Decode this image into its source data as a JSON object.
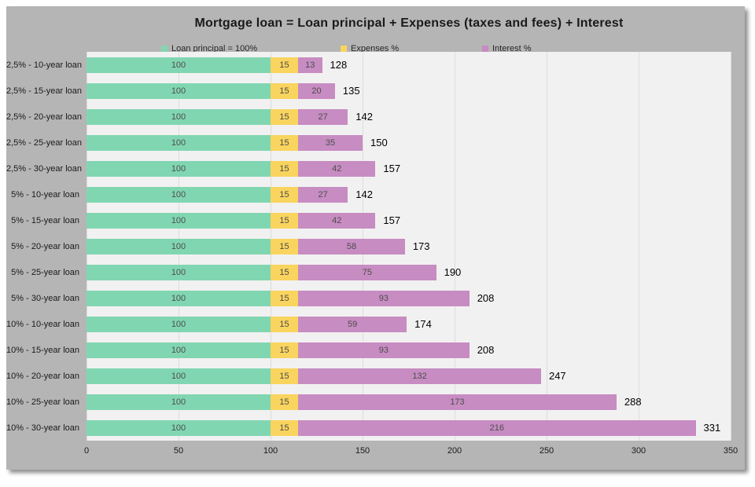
{
  "panel": {
    "background": "#b5b5b5",
    "plot_background": "#f2f1f1",
    "gridline_color": "#dddcdc"
  },
  "chart_data": {
    "type": "bar",
    "orientation": "horizontal",
    "stacked": true,
    "title": "Mortgage loan = Loan principal + Expenses (taxes and fees) + Interest",
    "categories": [
      "2,5% - 10-year loan",
      "2,5% - 15-year loan",
      "2,5% - 20-year loan",
      "2,5% - 25-year loan",
      "2,5% - 30-year loan",
      "5% - 10-year loan",
      "5% - 15-year loan",
      "5% - 20-year loan",
      "5% - 25-year loan",
      "5% - 30-year loan",
      "10% - 10-year loan",
      "10% - 15-year loan",
      "10% - 20-year loan",
      "10% - 25-year loan",
      "10% - 30-year loan"
    ],
    "series": [
      {
        "name": "Loan principal = 100%",
        "color": "#81d6b2",
        "values": [
          100,
          100,
          100,
          100,
          100,
          100,
          100,
          100,
          100,
          100,
          100,
          100,
          100,
          100,
          100
        ]
      },
      {
        "name": "Expenses %",
        "color": "#f9d45e",
        "values": [
          15,
          15,
          15,
          15,
          15,
          15,
          15,
          15,
          15,
          15,
          15,
          15,
          15,
          15,
          15
        ]
      },
      {
        "name": "Interest %",
        "color": "#c78cc2",
        "values": [
          13,
          20,
          27,
          35,
          42,
          27,
          42,
          58,
          75,
          93,
          59,
          93,
          132,
          173,
          216
        ]
      }
    ],
    "totals": [
      128,
      135,
      142,
      150,
      157,
      142,
      157,
      173,
      190,
      208,
      174,
      208,
      247,
      288,
      331
    ],
    "x_ticks": [
      0,
      50,
      100,
      150,
      200,
      250,
      300,
      350
    ],
    "xlim": [
      0,
      350
    ],
    "legend_position": "top",
    "grid": true
  }
}
